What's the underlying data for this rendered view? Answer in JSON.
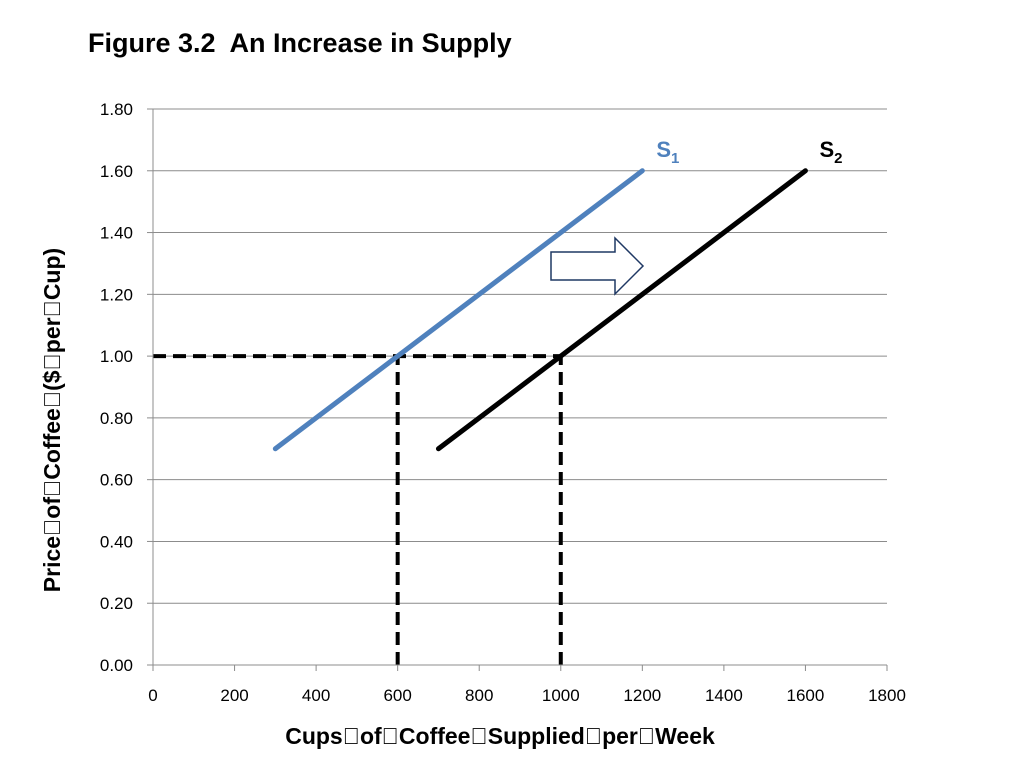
{
  "chart_data": {
    "type": "line",
    "title": "Figure 3.2  An Increase in Supply",
    "xlabel": "Cups\u0000of\u0000Coffee\u0000Supplied\u0000per\u0000Week",
    "ylabel": "Price\u0000of\u0000Coffee\u0000($\u0000per\u0000Cup)",
    "xlim": [
      0,
      1800
    ],
    "ylim": [
      0,
      1.8
    ],
    "x_ticks": [
      "0",
      "200",
      "400",
      "600",
      "800",
      "1000",
      "1200",
      "1400",
      "1600",
      "1800"
    ],
    "y_ticks": [
      "0.00",
      "0.20",
      "0.40",
      "0.60",
      "0.80",
      "1.00",
      "1.20",
      "1.40",
      "1.60",
      "1.80"
    ],
    "grid": "horizontal",
    "legend": "none",
    "series": [
      {
        "name": "S",
        "subscript": "1",
        "color": "#4F81BD",
        "x": [
          300,
          1200
        ],
        "y": [
          0.7,
          1.6
        ]
      },
      {
        "name": "S",
        "subscript": "2",
        "color": "#000000",
        "x": [
          700,
          1600
        ],
        "y": [
          0.7,
          1.6
        ]
      }
    ],
    "reference_lines": [
      {
        "style": "dashed",
        "x": [
          0,
          1000
        ],
        "y": [
          1.0,
          1.0
        ]
      },
      {
        "style": "dashed",
        "x": [
          600,
          600
        ],
        "y": [
          0,
          1.0
        ]
      },
      {
        "style": "dashed",
        "x": [
          1000,
          1000
        ],
        "y": [
          0,
          1.0
        ]
      }
    ],
    "annotations": [
      {
        "type": "arrow",
        "direction": "right",
        "meaning": "supply shift"
      }
    ]
  }
}
